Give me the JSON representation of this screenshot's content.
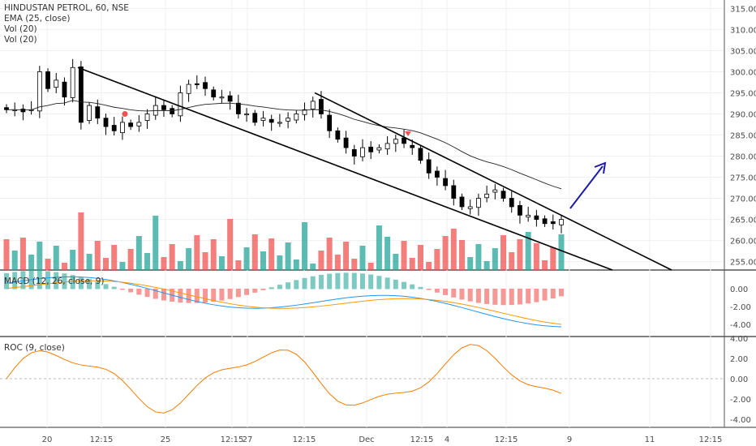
{
  "symbol_line": "HINDUSTAN PETROL, 60, NSE",
  "indicators": [
    "EMA (25, close)",
    "Vol (20)",
    "Vol (20)"
  ],
  "macd_label": "MACD (12, 26, close, 9)",
  "roc_label": "ROC (9, close)",
  "colors": {
    "up": "#26a69a",
    "down": "#ef5350",
    "candle_up": "#ffffff",
    "candle_down": "#000000",
    "trend": "#000000",
    "arrow": "#1a1aaa",
    "macd": "#2196f3",
    "signal": "#ff9800",
    "roc": "#f57c00"
  },
  "chart_data": [
    {
      "type": "candlestick",
      "ylim": [
        253,
        317
      ],
      "price_ticks": [
        "315.00",
        "310.00",
        "305.00",
        "300.00",
        "295.00",
        "290.00",
        "285.00",
        "280.00",
        "275.00",
        "270.00",
        "265.00",
        "260.00",
        "255.00"
      ],
      "time_ticks": [
        "20",
        "12:15",
        "25",
        "12:15",
        "27",
        "12:15",
        "Dec",
        "12:15",
        "4",
        "12:15",
        "9",
        "11",
        "12:15"
      ],
      "close": [
        291,
        291,
        290.5,
        291,
        300,
        296,
        298,
        294,
        301,
        288,
        292,
        289,
        287,
        286,
        288,
        287,
        288,
        290,
        292,
        291,
        290,
        295,
        297,
        297,
        296,
        294,
        294,
        293,
        290,
        290,
        288,
        289,
        288,
        288,
        289,
        290,
        291,
        293,
        290,
        286,
        284,
        282,
        280,
        282,
        281,
        282,
        283,
        284,
        283,
        282,
        279,
        276,
        275,
        273,
        270,
        268,
        268,
        270,
        271,
        272,
        270,
        268,
        266,
        266,
        265,
        264,
        264,
        265
      ]
    },
    {
      "type": "bar",
      "title": "Vol (20)",
      "note": "volume histogram (up/down colored)"
    },
    {
      "type": "line",
      "title": "MACD (12, 26, close, 9)",
      "y_ticks": [
        "0.00",
        "-2.00",
        "-4.00"
      ]
    },
    {
      "type": "line",
      "title": "ROC (9, close)",
      "y_ticks": [
        "4.00",
        "2.00",
        "0.00",
        "-2.00",
        "-4.00"
      ]
    }
  ]
}
